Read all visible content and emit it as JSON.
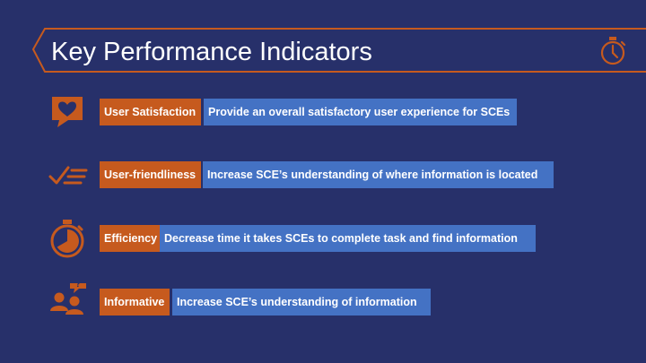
{
  "slide": {
    "title": "Key Performance Indicators",
    "colors": {
      "background": "#27306a",
      "accent": "#c65a1e",
      "desc_bar": "#4472c4"
    },
    "header_icon": "stopwatch-icon"
  },
  "kpis": [
    {
      "icon": "heart-speech-bubble-icon",
      "label": "User Satisfaction",
      "description": "Provide an overall satisfactory user experience for SCEs"
    },
    {
      "icon": "checklist-icon",
      "label": "User-friendliness",
      "description": "Increase SCE’s understanding of where information is located"
    },
    {
      "icon": "stopwatch-icon",
      "label": "Efficiency",
      "description": "Decrease time it takes SCEs to complete task and find information"
    },
    {
      "icon": "users-question-icon",
      "label": "Informative",
      "description": "Increase SCE’s understanding of information"
    }
  ]
}
